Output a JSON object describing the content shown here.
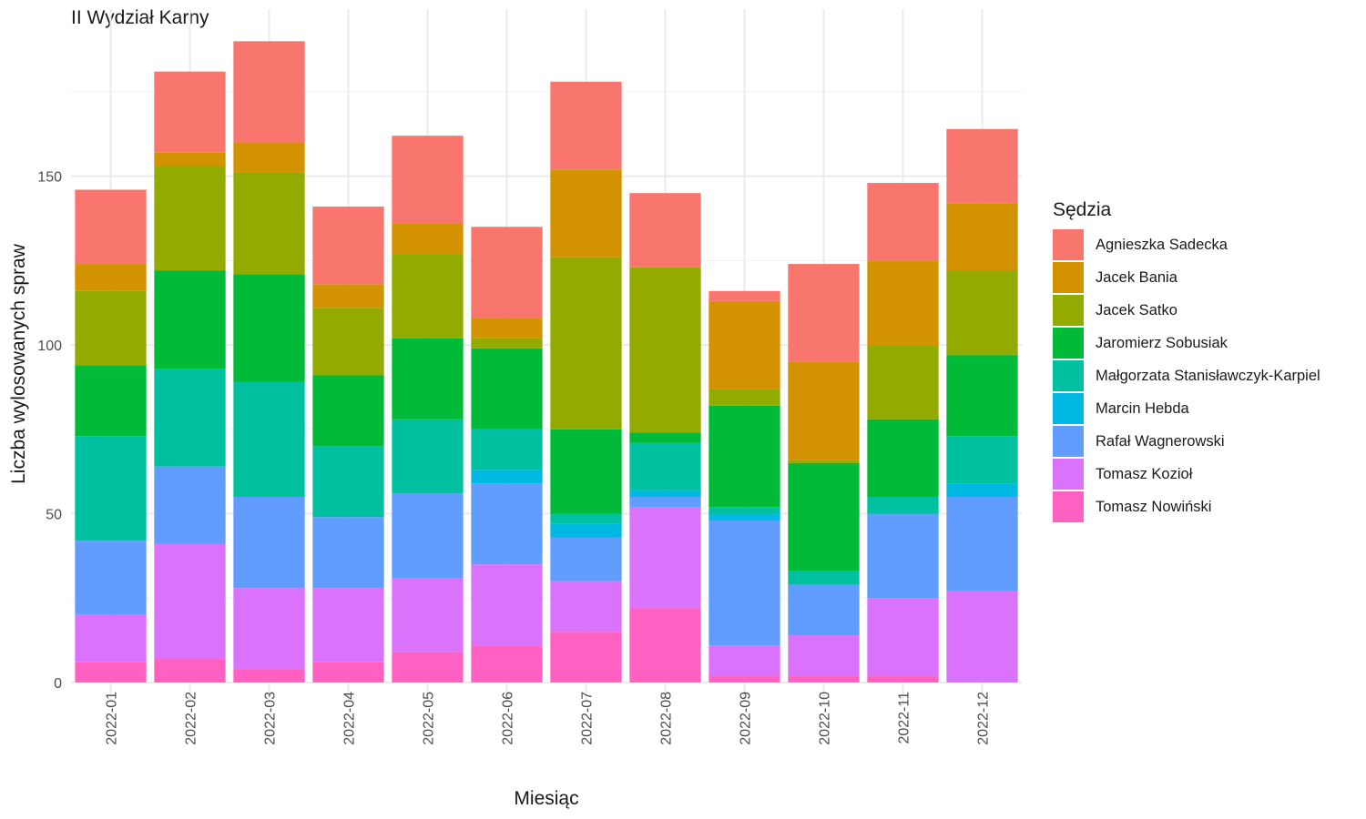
{
  "chart_data": {
    "type": "bar",
    "stacked": true,
    "title": "II Wydział Karny",
    "xlabel": "Miesiąc",
    "ylabel": "Liczba wylosowanych spraw",
    "ylim": [
      0,
      200
    ],
    "yticks": [
      0,
      50,
      100,
      150
    ],
    "grid": true,
    "legend_title": "Sędzia",
    "legend_position": "right",
    "categories": [
      "2022-01",
      "2022-02",
      "2022-03",
      "2022-04",
      "2022-05",
      "2022-06",
      "2022-07",
      "2022-08",
      "2022-09",
      "2022-10",
      "2022-11",
      "2022-12"
    ],
    "series": [
      {
        "name": "Agnieszka Sadecka",
        "color": "#F8766D",
        "values": [
          22,
          24,
          30,
          23,
          26,
          27,
          26,
          22,
          3,
          29,
          23,
          22
        ]
      },
      {
        "name": "Jacek Bania",
        "color": "#D39200",
        "values": [
          8,
          4,
          9,
          7,
          9,
          6,
          26,
          0,
          26,
          29,
          25,
          20
        ]
      },
      {
        "name": "Jacek Satko",
        "color": "#93AA00",
        "values": [
          22,
          31,
          30,
          20,
          25,
          3,
          51,
          49,
          5,
          1,
          22,
          25
        ]
      },
      {
        "name": "Jaromierz Sobusiak",
        "color": "#00BA38",
        "values": [
          21,
          29,
          32,
          21,
          24,
          24,
          25,
          3,
          30,
          32,
          23,
          24
        ]
      },
      {
        "name": "Małgorzata Stanisławczyk-Karpiel",
        "color": "#00C19F",
        "values": [
          31,
          29,
          34,
          21,
          22,
          12,
          3,
          14,
          2,
          4,
          5,
          14
        ]
      },
      {
        "name": "Marcin Hebda",
        "color": "#00B9E3",
        "values": [
          0,
          0,
          0,
          0,
          0,
          4,
          4,
          2,
          2,
          0,
          0,
          4
        ]
      },
      {
        "name": "Rafał Wagnerowski",
        "color": "#619CFF",
        "values": [
          22,
          23,
          27,
          21,
          25,
          24,
          13,
          3,
          37,
          15,
          25,
          28
        ]
      },
      {
        "name": "Tomasz Kozioł",
        "color": "#DB72FB",
        "values": [
          14,
          34,
          24,
          22,
          22,
          24,
          15,
          30,
          9,
          12,
          23,
          27
        ]
      },
      {
        "name": "Tomasz Nowiński",
        "color": "#FF61C3",
        "values": [
          6,
          7,
          4,
          6,
          9,
          11,
          15,
          22,
          2,
          2,
          2,
          0
        ]
      }
    ]
  }
}
